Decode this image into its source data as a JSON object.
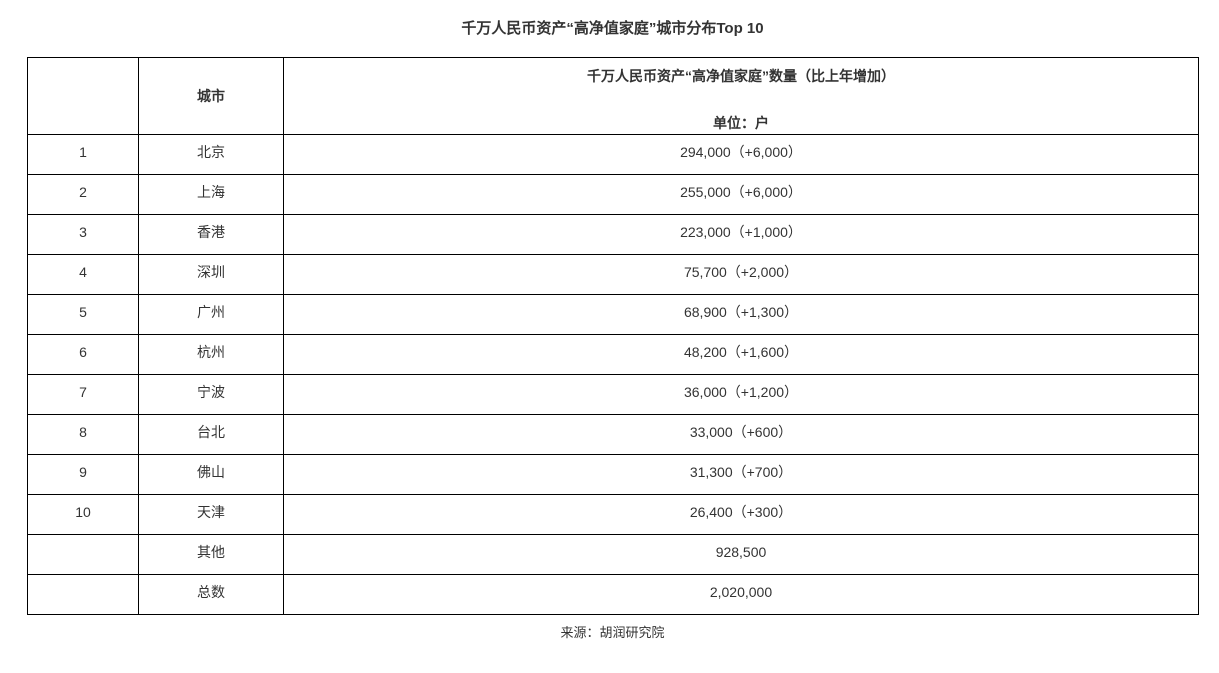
{
  "title": "千万人民币资产“高净值家庭”城市分布Top 10",
  "table": {
    "header": {
      "city_label": "城市",
      "value_label": "千万人民币资产“高净值家庭”数量（比上年增加）",
      "unit_label": "单位：户"
    },
    "rows": [
      {
        "rank": "1",
        "city": "北京",
        "value": "294,000（+6,000）"
      },
      {
        "rank": "2",
        "city": "上海",
        "value": "255,000（+6,000）"
      },
      {
        "rank": "3",
        "city": "香港",
        "value": "223,000（+1,000）"
      },
      {
        "rank": "4",
        "city": "深圳",
        "value": "75,700（+2,000）"
      },
      {
        "rank": "5",
        "city": "广州",
        "value": "68,900（+1,300）"
      },
      {
        "rank": "6",
        "city": "杭州",
        "value": "48,200（+1,600）"
      },
      {
        "rank": "7",
        "city": "宁波",
        "value": "36,000（+1,200）"
      },
      {
        "rank": "8",
        "city": "台北",
        "value": "33,000（+600）"
      },
      {
        "rank": "9",
        "city": "佛山",
        "value": "31,300（+700）"
      },
      {
        "rank": "10",
        "city": "天津",
        "value": "26,400（+300）"
      },
      {
        "rank": "",
        "city": "其他",
        "value": "928,500"
      },
      {
        "rank": "",
        "city": "总数",
        "value": "2,020,000"
      }
    ]
  },
  "source": "来源：胡润研究院",
  "colors": {
    "text": "#333333",
    "border": "#000000",
    "background": "#ffffff"
  },
  "chart_data": {
    "type": "table",
    "title": "千万人民币资产“高净值家庭”城市分布Top 10",
    "unit": "户",
    "categories": [
      "北京",
      "上海",
      "香港",
      "深圳",
      "广州",
      "杭州",
      "宁波",
      "台北",
      "佛山",
      "天津",
      "其他",
      "总数"
    ],
    "ranks": [
      1,
      2,
      3,
      4,
      5,
      6,
      7,
      8,
      9,
      10,
      null,
      null
    ],
    "values": [
      294000,
      255000,
      223000,
      75700,
      68900,
      48200,
      36000,
      33000,
      31300,
      26400,
      928500,
      2020000
    ],
    "increase_vs_prior_year": [
      6000,
      6000,
      1000,
      2000,
      1300,
      1600,
      1200,
      600,
      700,
      300,
      null,
      null
    ],
    "source": "来源：胡润研究院"
  }
}
